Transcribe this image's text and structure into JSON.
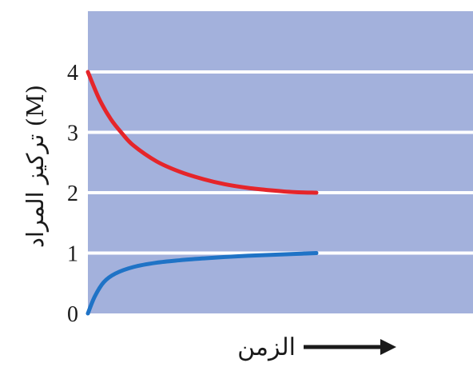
{
  "chart_data": {
    "type": "line",
    "ylabel": "تركيز المراد (M)",
    "xlabel": "الزمن",
    "ylim": [
      0,
      4.85
    ],
    "yticks": [
      "0",
      "1",
      "2",
      "3",
      "4"
    ],
    "grid": true,
    "x_axis_ticks_shown": false,
    "series": [
      {
        "color": "#e5252a",
        "points": [
          [
            0,
            4.0
          ],
          [
            0.05,
            3.55
          ],
          [
            0.1,
            3.22
          ],
          [
            0.15,
            2.98
          ],
          [
            0.2,
            2.78
          ],
          [
            0.3,
            2.52
          ],
          [
            0.4,
            2.35
          ],
          [
            0.5,
            2.23
          ],
          [
            0.6,
            2.14
          ],
          [
            0.7,
            2.08
          ],
          [
            0.8,
            2.04
          ],
          [
            0.9,
            2.01
          ],
          [
            1.0,
            2.0
          ]
        ]
      },
      {
        "color": "#1f73c6",
        "points": [
          [
            0,
            0.0
          ],
          [
            0.03,
            0.28
          ],
          [
            0.07,
            0.52
          ],
          [
            0.12,
            0.66
          ],
          [
            0.2,
            0.77
          ],
          [
            0.3,
            0.84
          ],
          [
            0.4,
            0.88
          ],
          [
            0.5,
            0.91
          ],
          [
            0.6,
            0.935
          ],
          [
            0.7,
            0.955
          ],
          [
            0.8,
            0.97
          ],
          [
            0.9,
            0.985
          ],
          [
            1.0,
            1.0
          ]
        ]
      }
    ],
    "colors": {
      "plot_background": "#a3b1dc",
      "gridline": "#ffffff"
    }
  }
}
